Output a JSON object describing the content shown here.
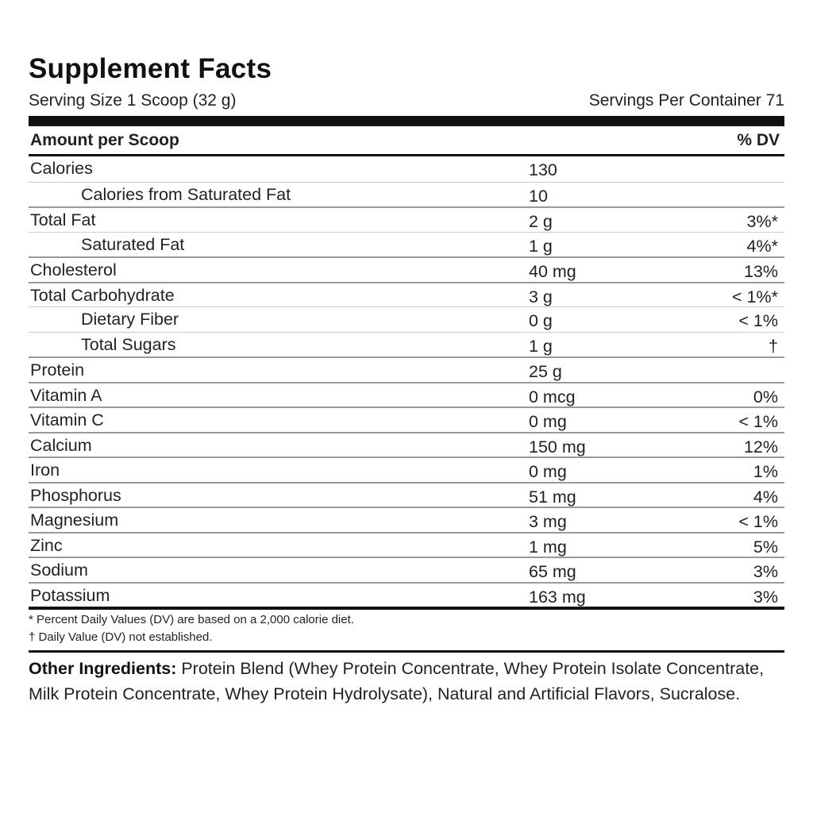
{
  "title": "Supplement Facts",
  "serving_size": "Serving Size 1 Scoop (32 g)",
  "servings_per_container": "Servings Per Container 71",
  "header": {
    "amount_label": "Amount per Scoop",
    "dv_label": "% DV"
  },
  "rows": [
    {
      "name": "Calories",
      "amount": "130",
      "dv": "",
      "sub": false
    },
    {
      "name": "Calories from Saturated Fat",
      "amount": "10",
      "dv": "",
      "sub": true
    },
    {
      "name": "Total Fat",
      "amount": "2 g",
      "dv": "3%*",
      "sub": false
    },
    {
      "name": "Saturated Fat",
      "amount": "1 g",
      "dv": "4%*",
      "sub": true
    },
    {
      "name": "Cholesterol",
      "amount": "40 mg",
      "dv": "13%",
      "sub": false
    },
    {
      "name": "Total Carbohydrate",
      "amount": "3 g",
      "dv": "< 1%*",
      "sub": false
    },
    {
      "name": "Dietary Fiber",
      "amount": "0 g",
      "dv": "< 1%",
      "sub": true
    },
    {
      "name": "Total Sugars",
      "amount": "1 g",
      "dv": "†",
      "sub": true
    },
    {
      "name": "Protein",
      "amount": "25 g",
      "dv": "",
      "sub": false
    },
    {
      "name": "Vitamin A",
      "amount": "0 mcg",
      "dv": "0%",
      "sub": false
    },
    {
      "name": "Vitamin C",
      "amount": "0 mg",
      "dv": "< 1%",
      "sub": false
    },
    {
      "name": "Calcium",
      "amount": "150 mg",
      "dv": "12%",
      "sub": false
    },
    {
      "name": "Iron",
      "amount": "0 mg",
      "dv": "1%",
      "sub": false
    },
    {
      "name": "Phosphorus",
      "amount": "51 mg",
      "dv": "4%",
      "sub": false
    },
    {
      "name": "Magnesium",
      "amount": "3 mg",
      "dv": "< 1%",
      "sub": false
    },
    {
      "name": "Zinc",
      "amount": "1 mg",
      "dv": "5%",
      "sub": false
    },
    {
      "name": "Sodium",
      "amount": "65 mg",
      "dv": "3%",
      "sub": false
    },
    {
      "name": "Potassium",
      "amount": "163 mg",
      "dv": "3%",
      "sub": false
    }
  ],
  "footnotes": [
    "* Percent Daily Values (DV) are based on a 2,000 calorie diet.",
    "† Daily Value (DV) not established."
  ],
  "other_ingredients": {
    "label": "Other Ingredients:",
    "text": " Protein Blend (Whey Protein Concentrate, Whey Protein Isolate Concentrate, Milk Protein Concentrate, Whey Protein Hydrolysate), Natural and Artificial Flavors, Sucralose."
  }
}
